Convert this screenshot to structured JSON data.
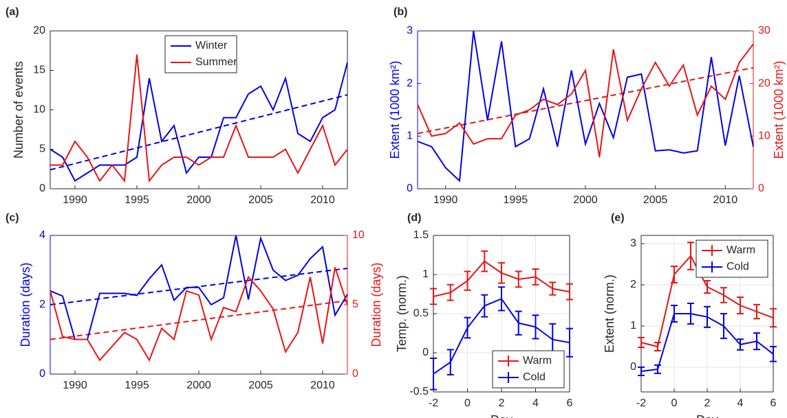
{
  "chart_data": [
    {
      "type": "line",
      "panel_label": "(a)",
      "ylabel": "Number of events",
      "x": [
        1988,
        1989,
        1990,
        1991,
        1992,
        1993,
        1994,
        1995,
        1996,
        1997,
        1998,
        1999,
        2000,
        2001,
        2002,
        2003,
        2004,
        2005,
        2006,
        2007,
        2008,
        2009,
        2010,
        2011,
        2012
      ],
      "xlim": [
        1988,
        2012
      ],
      "xticks": [
        1990,
        1995,
        2000,
        2005,
        2010
      ],
      "ylim": [
        0,
        20
      ],
      "yticks": [
        0,
        5,
        10,
        15,
        20
      ],
      "grid": false,
      "legend": "upper center",
      "series": [
        {
          "name": "Winter",
          "color": "#0000e6",
          "values": [
            5,
            4,
            1,
            2,
            3,
            3,
            3,
            4,
            14,
            6,
            8,
            2,
            4,
            4,
            9,
            9,
            12,
            13,
            10,
            14,
            7,
            6,
            9,
            10,
            16
          ]
        },
        {
          "name": "Summer",
          "color": "#e81414",
          "values": [
            3,
            3,
            6,
            4,
            1,
            3,
            1,
            17,
            1,
            3,
            4,
            4,
            3,
            4,
            4,
            8,
            4,
            4,
            4,
            5,
            2,
            5,
            8,
            3,
            5
          ]
        }
      ],
      "trends": [
        {
          "color": "#0000e6",
          "x": [
            1988,
            2012
          ],
          "values": [
            2.4,
            11.9
          ]
        }
      ]
    },
    {
      "type": "line",
      "panel_label": "(b)",
      "ylabel": "Extent (1000 km²)",
      "y2label": "Extent (1000 km²)",
      "x": [
        1988,
        1989,
        1990,
        1991,
        1992,
        1993,
        1994,
        1995,
        1996,
        1997,
        1998,
        1999,
        2000,
        2001,
        2002,
        2003,
        2004,
        2005,
        2006,
        2007,
        2008,
        2009,
        2010,
        2011,
        2012
      ],
      "xlim": [
        1988,
        2012
      ],
      "xticks": [
        1990,
        1995,
        2000,
        2005,
        2010
      ],
      "ylim": [
        0,
        3
      ],
      "yticks": [
        0,
        1,
        2,
        3
      ],
      "y2lim": [
        0,
        30
      ],
      "y2ticks": [
        0,
        10,
        20,
        30
      ],
      "grid": false,
      "series": [
        {
          "color": "#0000e6",
          "values": [
            0.9,
            0.8,
            0.4,
            0.15,
            3.0,
            1.3,
            2.8,
            0.8,
            0.95,
            1.9,
            0.8,
            2.25,
            0.85,
            1.62,
            0.97,
            2.12,
            2.18,
            0.72,
            0.74,
            0.68,
            0.72,
            2.5,
            0.82,
            2.15,
            0.8
          ]
        },
        {
          "color": "#e81414",
          "axis": "y2",
          "values": [
            16,
            10,
            10.5,
            12.5,
            8.5,
            9.5,
            9.5,
            14,
            15,
            17,
            16,
            18,
            22.5,
            6,
            26.5,
            13,
            19,
            24,
            19.5,
            23.5,
            14,
            19.5,
            17,
            24,
            27.5
          ]
        }
      ],
      "trends": [
        {
          "color": "#e81414",
          "axis": "y2",
          "x": [
            1988,
            2012
          ],
          "values": [
            10.5,
            23
          ]
        }
      ]
    },
    {
      "type": "line",
      "panel_label": "(c)",
      "ylabel": "Duration (days)",
      "y2label": "Duration (days)",
      "x": [
        1988,
        1989,
        1990,
        1991,
        1992,
        1993,
        1994,
        1995,
        1996,
        1997,
        1998,
        1999,
        2000,
        2001,
        2002,
        2003,
        2004,
        2005,
        2006,
        2007,
        2008,
        2009,
        2010,
        2011,
        2012
      ],
      "xlim": [
        1988,
        2012
      ],
      "xticks": [
        1990,
        1995,
        2000,
        2005,
        2010
      ],
      "ylim": [
        0,
        4
      ],
      "yticks": [
        0,
        2,
        4
      ],
      "y2lim": [
        0,
        10
      ],
      "y2ticks": [
        0,
        5,
        10
      ],
      "grid": false,
      "series": [
        {
          "color": "#0000e6",
          "values": [
            2.4,
            2.25,
            1.0,
            1.0,
            2.33,
            2.33,
            2.33,
            2.27,
            2.75,
            3.15,
            2.13,
            2.5,
            2.5,
            2.0,
            2.2,
            4.0,
            2.15,
            3.92,
            3.0,
            2.7,
            2.85,
            3.33,
            3.67,
            1.7,
            2.3
          ]
        },
        {
          "color": "#e81414",
          "axis": "y2",
          "values": [
            6,
            2.7,
            2.5,
            2.5,
            1.0,
            2.0,
            3.0,
            2.5,
            1.0,
            3.3,
            2.5,
            6,
            5.7,
            2.5,
            4.8,
            4.5,
            7.0,
            6.0,
            4.7,
            1.6,
            3.0,
            7.0,
            2.2,
            7.7,
            5.0
          ]
        }
      ],
      "trends": [
        {
          "color": "#0000e6",
          "x": [
            1988,
            2012
          ],
          "values": [
            2.0,
            3.05
          ]
        },
        {
          "color": "#e81414",
          "axis": "y2",
          "x": [
            1988,
            2012
          ],
          "values": [
            2.5,
            5.3
          ]
        }
      ]
    },
    {
      "type": "errorbar",
      "panel_label": "(d)",
      "ylabel": "Temp. (norm.)",
      "xlabel": "Day",
      "x": [
        -2,
        -1,
        0,
        1,
        2,
        3,
        4,
        5,
        6
      ],
      "xlim": [
        -2,
        6
      ],
      "xticks": [
        -2,
        0,
        2,
        4,
        6
      ],
      "ylim": [
        -0.5,
        1.5
      ],
      "yticks": [
        -0.5,
        0,
        0.5,
        1,
        1.5
      ],
      "grid": true,
      "legend": "lower right",
      "series": [
        {
          "name": "Warm",
          "color": "#e81414",
          "values": [
            0.72,
            0.77,
            0.92,
            1.17,
            1.02,
            0.94,
            0.97,
            0.82,
            0.78
          ],
          "errors": [
            0.1,
            0.1,
            0.12,
            0.13,
            0.13,
            0.1,
            0.1,
            0.08,
            0.1
          ]
        },
        {
          "name": "Cold",
          "color": "#0000e6",
          "values": [
            -0.27,
            -0.12,
            0.32,
            0.6,
            0.69,
            0.38,
            0.33,
            0.17,
            0.13
          ],
          "errors": [
            0.2,
            0.16,
            0.13,
            0.14,
            0.15,
            0.15,
            0.15,
            0.2,
            0.18
          ]
        }
      ]
    },
    {
      "type": "errorbar",
      "panel_label": "(e)",
      "ylabel": "Extent (norm.)",
      "xlabel": "Day",
      "x": [
        -2,
        -1,
        0,
        1,
        2,
        3,
        4,
        5,
        6
      ],
      "xlim": [
        -2,
        6
      ],
      "xticks": [
        -2,
        0,
        2,
        4,
        6
      ],
      "ylim": [
        -0.6,
        3.2
      ],
      "yticks": [
        0,
        1,
        2,
        3
      ],
      "grid": true,
      "legend": "upper right",
      "series": [
        {
          "name": "Warm",
          "color": "#e81414",
          "values": [
            0.6,
            0.5,
            2.25,
            2.7,
            1.95,
            1.75,
            1.5,
            1.35,
            1.2
          ],
          "errors": [
            0.12,
            0.1,
            0.2,
            0.33,
            0.15,
            0.18,
            0.2,
            0.17,
            0.22
          ]
        },
        {
          "name": "Cold",
          "color": "#0000e6",
          "values": [
            -0.1,
            -0.05,
            1.3,
            1.3,
            1.22,
            1.0,
            0.55,
            0.63,
            0.32
          ],
          "errors": [
            0.1,
            0.1,
            0.2,
            0.25,
            0.25,
            0.3,
            0.13,
            0.2,
            0.18
          ]
        }
      ]
    }
  ]
}
